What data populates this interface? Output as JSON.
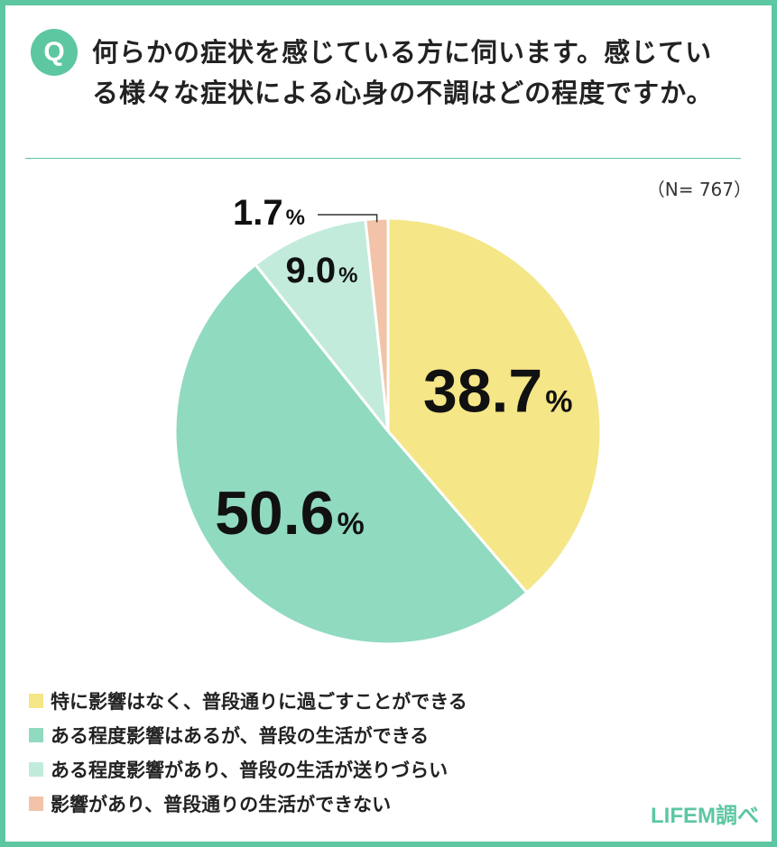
{
  "question": {
    "badge": "Q",
    "text": "何らかの症状を感じている方に伺います。感じている様々な症状による心身の不調はどの程度ですか。"
  },
  "sample_note": "（N= 767）",
  "credit": "LIFEM調べ",
  "percent_sign": "%",
  "chart_data": {
    "type": "pie",
    "total_n": 767,
    "slices": [
      {
        "label": "特に影響はなく、普段通りに過ごすことができる",
        "value": 38.7,
        "display": "38.7",
        "color": "#f5e687"
      },
      {
        "label": "ある程度影響はあるが、普段の生活ができる",
        "value": 50.6,
        "display": "50.6",
        "color": "#90dac0"
      },
      {
        "label": "ある程度影響があり、普段の生活が送りづらい",
        "value": 9.0,
        "display": "9.0",
        "color": "#c2ebdc"
      },
      {
        "label": "影響があり、普段通りの生活ができない",
        "value": 1.7,
        "display": "1.7",
        "color": "#f2c3a8"
      }
    ]
  }
}
